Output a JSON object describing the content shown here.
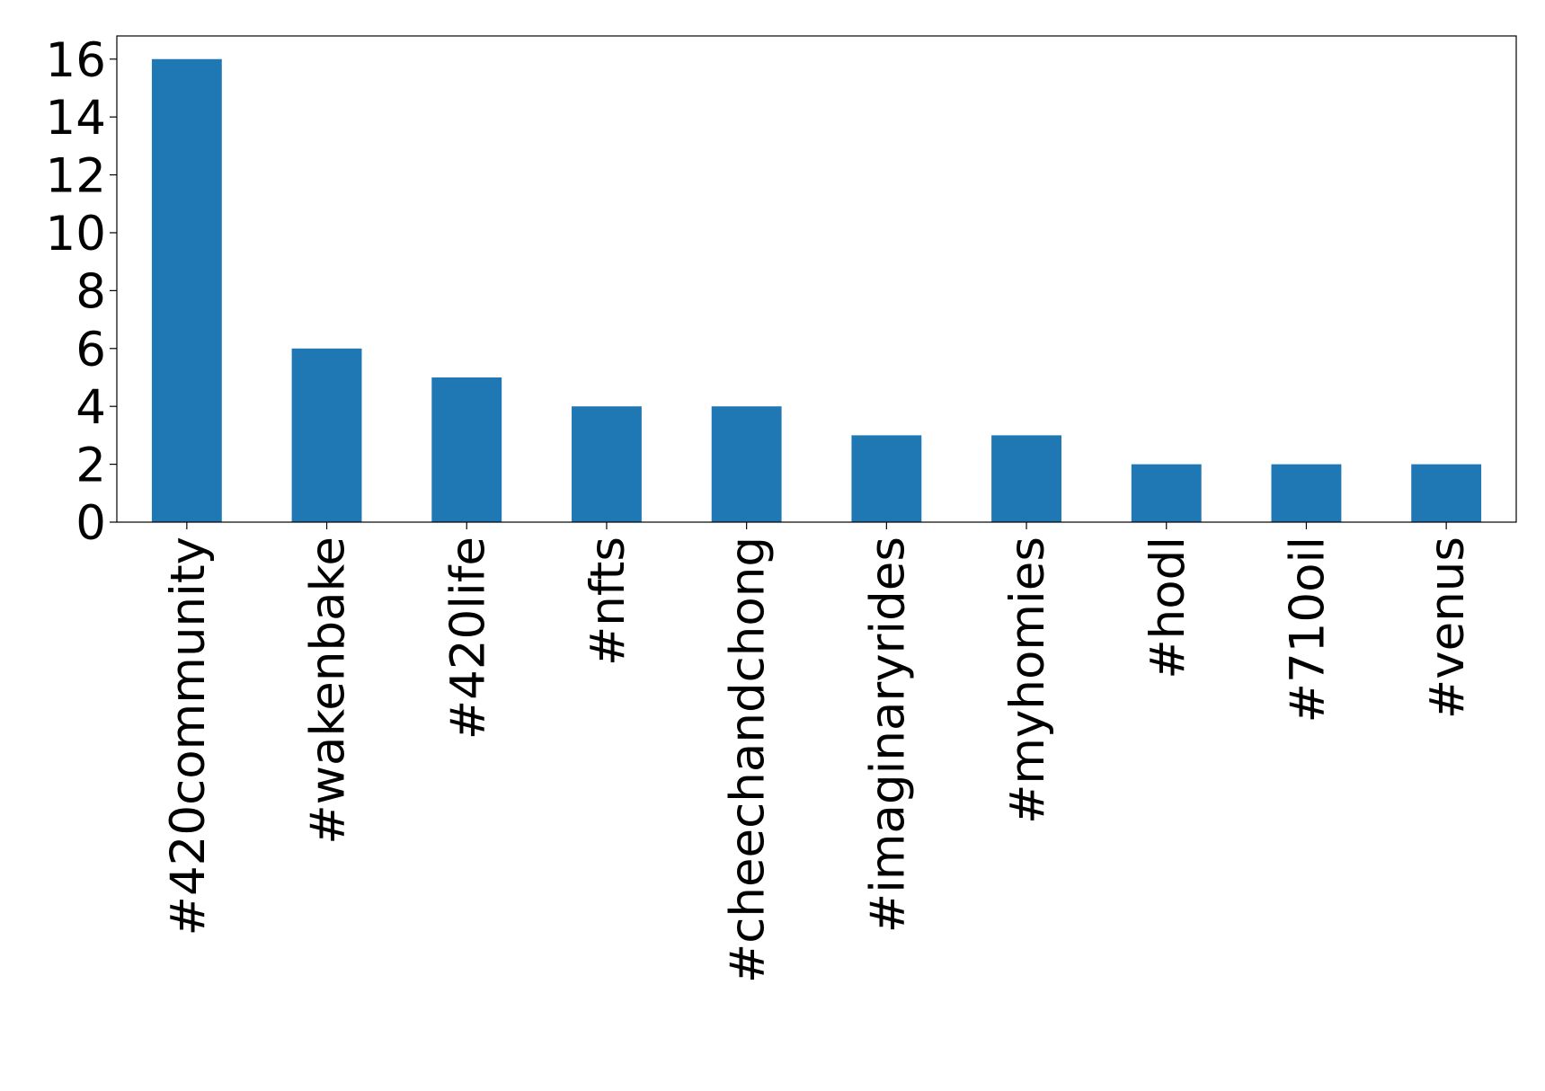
{
  "chart_data": {
    "type": "bar",
    "categories": [
      "#420community",
      "#wakenbake",
      "#420life",
      "#nfts",
      "#cheechandchong",
      "#imaginaryrides",
      "#myhomies",
      "#hodl",
      "#710oil",
      "#venus"
    ],
    "values": [
      16,
      6,
      5,
      4,
      4,
      3,
      3,
      2,
      2,
      2
    ],
    "color": "#1f77b4",
    "ylim": [
      0,
      16.8
    ],
    "yticks": [
      0,
      2,
      4,
      6,
      8,
      10,
      12,
      14,
      16
    ],
    "grid": false
  }
}
